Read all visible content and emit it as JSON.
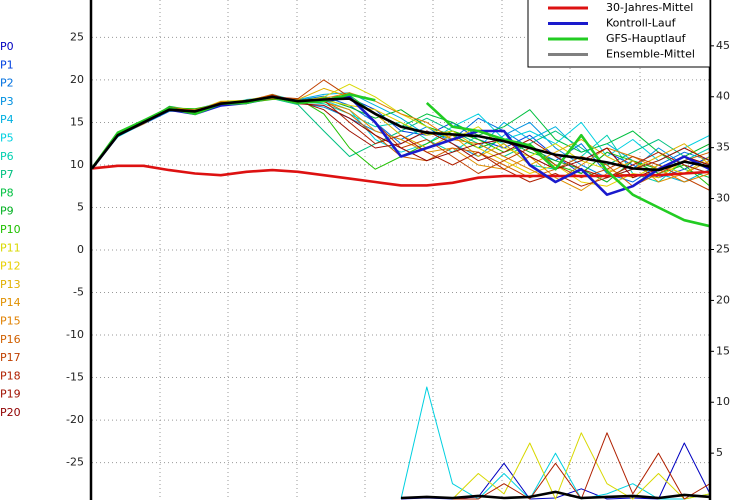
{
  "chart_data": {
    "type": "line",
    "grid": true,
    "legend": "upper right",
    "ylim": [
      -29.4,
      29.4
    ],
    "yticks": [
      -25,
      -20,
      -15,
      -10,
      -5,
      0,
      5,
      10,
      15,
      20,
      25
    ],
    "y2lim": [
      0.4,
      49.5
    ],
    "y2ticks": [
      5,
      10,
      15,
      20,
      25,
      30,
      35,
      40,
      45
    ],
    "series": [
      {
        "name": "30-Jahres-Mittel",
        "color": "#dd1111",
        "values": [
          9.6,
          9.9,
          9.9,
          9.4,
          9.0,
          8.8,
          9.2,
          9.4,
          9.2,
          8.8,
          8.4,
          8.0,
          7.6,
          7.6,
          7.9,
          8.5,
          8.7,
          8.7,
          8.7,
          8.7,
          8.7,
          8.8,
          8.8,
          9.0,
          9.2
        ]
      },
      {
        "name": "Kontroll-Lauf",
        "color": "#1a1acc",
        "values": [
          9.6,
          13.5,
          15.0,
          16.5,
          16.0,
          17.0,
          17.3,
          18.0,
          17.5,
          17.5,
          18.0,
          15.0,
          11.0,
          12.0,
          13.0,
          14.0,
          14.0,
          10.0,
          8.0,
          9.5,
          6.5,
          7.5,
          9.5,
          11.0,
          9.5
        ]
      },
      {
        "name": "GFS-Hauptlauf",
        "color": "#22cc22",
        "values": [
          9.6,
          13.8,
          15.2,
          16.7,
          16.0,
          17.2,
          17.3,
          18.0,
          17.3,
          17.5,
          18.3,
          17.6,
          null,
          17.3,
          14.5,
          14.0,
          13.0,
          12.3,
          9.5,
          13.5,
          9.3,
          6.5,
          5.0,
          3.5,
          2.8
        ]
      },
      {
        "name": "Ensemble-Mittel",
        "color": "#000000",
        "legend_color": "#808080",
        "values": [
          9.6,
          13.5,
          15.0,
          16.5,
          16.3,
          17.2,
          17.5,
          18.0,
          17.5,
          17.7,
          17.8,
          16.0,
          14.5,
          13.8,
          13.6,
          13.4,
          12.8,
          12.0,
          11.2,
          10.8,
          10.3,
          9.6,
          9.4,
          10.4,
          9.8
        ],
        "precip": [
          null,
          null,
          null,
          null,
          null,
          null,
          null,
          null,
          null,
          null,
          null,
          null,
          0.6,
          0.7,
          0.6,
          0.8,
          0.6,
          0.7,
          1.2,
          0.6,
          0.7,
          0.8,
          0.6,
          0.9,
          0.7
        ]
      }
    ],
    "members": [
      {
        "name": "P0",
        "color": "#0000c0",
        "values": [
          9.6,
          13.5,
          15.0,
          16.5,
          16.0,
          17.0,
          17.3,
          18.0,
          17.5,
          17.5,
          18.0,
          15.0,
          11.0,
          12.0,
          13.0,
          14.0,
          14.0,
          10.0,
          8.0,
          9.5,
          6.5,
          7.5,
          9.5,
          11.0,
          9.5
        ],
        "precip": [
          null,
          null,
          null,
          null,
          null,
          null,
          null,
          null,
          null,
          null,
          null,
          null,
          0.5,
          0.6,
          0.5,
          0.7,
          4.0,
          0.5,
          0.6,
          1.5,
          0.5,
          0.6,
          0.5,
          6.0,
          1.0
        ]
      },
      {
        "name": "P1",
        "color": "#0040e0",
        "values": [
          9.6,
          13.7,
          15.2,
          16.8,
          16.1,
          17.0,
          17.6,
          18.1,
          17.2,
          17.4,
          17.9,
          16.5,
          14.0,
          13.5,
          15.0,
          13.0,
          12.0,
          13.5,
          11.0,
          9.0,
          11.5,
          10.0,
          8.5,
          9.5,
          11.0
        ]
      },
      {
        "name": "P2",
        "color": "#0070e0",
        "values": [
          9.6,
          13.4,
          14.8,
          16.3,
          16.4,
          17.3,
          17.2,
          17.8,
          17.6,
          18.1,
          17.0,
          15.0,
          12.5,
          14.0,
          13.0,
          15.5,
          14.0,
          12.0,
          10.5,
          12.5,
          9.0,
          8.0,
          10.0,
          11.5,
          10.5
        ]
      },
      {
        "name": "P3",
        "color": "#0090e0",
        "values": [
          9.6,
          13.6,
          15.1,
          16.6,
          16.2,
          17.1,
          17.4,
          18.2,
          17.3,
          16.8,
          15.5,
          14.0,
          13.0,
          14.5,
          12.5,
          11.0,
          13.5,
          15.0,
          12.0,
          10.0,
          8.5,
          9.5,
          12.0,
          10.0,
          9.0
        ]
      },
      {
        "name": "P4",
        "color": "#00b0e0",
        "values": [
          9.6,
          13.5,
          15.0,
          16.7,
          16.5,
          17.4,
          17.5,
          17.9,
          17.7,
          18.3,
          18.5,
          17.0,
          15.5,
          13.5,
          14.0,
          12.0,
          15.0,
          13.0,
          14.5,
          11.5,
          12.5,
          10.5,
          9.0,
          8.0,
          9.5
        ]
      },
      {
        "name": "P5",
        "color": "#00d0e0",
        "values": [
          9.6,
          13.3,
          14.9,
          16.4,
          16.0,
          16.9,
          17.7,
          18.0,
          17.4,
          17.6,
          16.5,
          13.0,
          11.5,
          12.5,
          14.5,
          16.0,
          13.0,
          14.0,
          12.5,
          15.0,
          11.0,
          13.0,
          10.5,
          12.0,
          13.5
        ],
        "precip": [
          null,
          null,
          null,
          null,
          null,
          null,
          null,
          null,
          null,
          null,
          null,
          null,
          0.5,
          11.5,
          2.0,
          0.5,
          3.0,
          0.5,
          5.0,
          0.5,
          1.0,
          2.0,
          0.5,
          0.5,
          1.0
        ]
      },
      {
        "name": "P6",
        "color": "#00d0b0",
        "values": [
          9.6,
          13.8,
          15.3,
          16.5,
          16.3,
          17.2,
          17.3,
          18.3,
          17.5,
          17.2,
          16.0,
          14.5,
          15.0,
          13.0,
          11.5,
          13.5,
          12.5,
          10.0,
          9.5,
          11.0,
          13.5,
          9.0,
          8.0,
          10.5,
          12.0
        ]
      },
      {
        "name": "P7",
        "color": "#00c080",
        "values": [
          9.6,
          13.5,
          15.1,
          16.6,
          16.2,
          17.0,
          17.6,
          17.8,
          17.1,
          14.0,
          11.0,
          12.5,
          14.0,
          15.5,
          14.0,
          12.5,
          11.0,
          12.5,
          14.0,
          12.0,
          10.0,
          11.5,
          13.0,
          11.0,
          10.0
        ]
      },
      {
        "name": "P8",
        "color": "#00c040",
        "values": [
          9.6,
          13.6,
          15.0,
          16.9,
          16.4,
          17.3,
          17.4,
          18.1,
          17.6,
          17.9,
          18.2,
          16.0,
          14.5,
          16.0,
          15.0,
          13.5,
          14.5,
          16.5,
          13.0,
          11.5,
          12.5,
          14.0,
          11.5,
          9.5,
          8.5
        ]
      },
      {
        "name": "P9",
        "color": "#00b020",
        "values": [
          9.6,
          13.4,
          15.2,
          16.4,
          16.1,
          17.1,
          17.5,
          18.0,
          17.3,
          17.8,
          16.8,
          15.5,
          16.5,
          14.5,
          13.5,
          12.0,
          13.0,
          11.5,
          10.5,
          9.5,
          8.0,
          10.5,
          9.5,
          11.0,
          12.5
        ]
      },
      {
        "name": "P10",
        "color": "#20c000",
        "values": [
          9.6,
          13.7,
          14.9,
          16.7,
          16.6,
          17.2,
          17.3,
          17.7,
          17.8,
          16.0,
          12.0,
          9.5,
          11.0,
          12.5,
          14.0,
          13.0,
          11.5,
          12.5,
          10.0,
          9.0,
          11.5,
          10.5,
          9.0,
          10.0,
          7.5
        ]
      },
      {
        "name": "P11",
        "color": "#d8d800",
        "values": [
          9.6,
          13.5,
          15.1,
          16.5,
          16.3,
          17.5,
          17.6,
          18.2,
          17.4,
          18.0,
          19.5,
          18.0,
          16.0,
          14.5,
          13.0,
          14.5,
          12.0,
          11.0,
          12.5,
          10.5,
          9.5,
          8.5,
          10.0,
          9.0,
          11.0
        ],
        "precip": [
          null,
          null,
          null,
          null,
          null,
          null,
          null,
          null,
          null,
          null,
          null,
          null,
          null,
          null,
          0.5,
          3.0,
          1.0,
          6.0,
          0.5,
          7.0,
          2.0,
          0.5,
          3.0,
          0.5,
          1.0
        ]
      },
      {
        "name": "P12",
        "color": "#e8d000",
        "values": [
          9.6,
          13.6,
          15.0,
          16.6,
          16.0,
          17.0,
          17.5,
          17.9,
          17.2,
          17.6,
          17.0,
          16.5,
          15.0,
          13.5,
          14.0,
          12.0,
          10.5,
          9.0,
          10.0,
          8.0,
          7.5,
          9.0,
          8.5,
          10.5,
          9.5
        ]
      },
      {
        "name": "P13",
        "color": "#e0b000",
        "values": [
          9.6,
          13.4,
          15.2,
          16.8,
          16.4,
          17.3,
          17.4,
          18.0,
          17.7,
          19.0,
          18.0,
          16.0,
          13.5,
          12.0,
          13.5,
          11.0,
          12.5,
          10.0,
          11.5,
          13.0,
          11.0,
          9.5,
          11.0,
          12.5,
          10.0
        ]
      },
      {
        "name": "P14",
        "color": "#e09000",
        "values": [
          9.6,
          13.7,
          15.0,
          16.4,
          16.2,
          17.1,
          17.6,
          18.1,
          17.5,
          17.4,
          16.5,
          14.0,
          13.0,
          11.5,
          12.0,
          10.0,
          9.5,
          11.0,
          8.5,
          7.0,
          9.0,
          10.5,
          8.0,
          9.0,
          10.5
        ]
      },
      {
        "name": "P15",
        "color": "#e08000",
        "values": [
          9.6,
          13.5,
          14.8,
          16.6,
          16.5,
          17.2,
          17.3,
          17.8,
          17.6,
          17.8,
          18.5,
          17.5,
          16.0,
          15.0,
          13.0,
          12.5,
          11.0,
          9.5,
          8.0,
          10.0,
          12.0,
          11.0,
          9.5,
          8.0,
          9.0
        ]
      },
      {
        "name": "P16",
        "color": "#d06000",
        "values": [
          9.6,
          13.6,
          15.1,
          16.7,
          16.1,
          17.0,
          17.5,
          18.3,
          17.3,
          17.5,
          16.0,
          13.5,
          11.0,
          10.5,
          12.0,
          11.5,
          10.0,
          8.5,
          9.5,
          11.0,
          10.0,
          7.5,
          9.0,
          10.5,
          11.5
        ]
      },
      {
        "name": "P17",
        "color": "#c04000",
        "values": [
          9.6,
          13.5,
          15.2,
          16.5,
          16.3,
          17.4,
          17.4,
          18.0,
          17.8,
          20.0,
          18.0,
          15.0,
          12.0,
          13.0,
          11.0,
          9.0,
          10.5,
          12.0,
          10.0,
          8.5,
          9.5,
          11.0,
          10.0,
          8.5,
          7.0
        ]
      },
      {
        "name": "P18",
        "color": "#b02000",
        "values": [
          9.6,
          13.4,
          15.0,
          16.6,
          16.4,
          17.1,
          17.6,
          17.9,
          17.4,
          17.6,
          15.0,
          12.5,
          13.5,
          11.5,
          10.0,
          11.5,
          9.5,
          8.0,
          9.0,
          7.5,
          8.5,
          10.0,
          11.5,
          10.0,
          9.0
        ],
        "precip": [
          null,
          null,
          null,
          null,
          null,
          null,
          null,
          null,
          null,
          null,
          null,
          null,
          null,
          null,
          0.5,
          0.5,
          2.0,
          0.5,
          4.0,
          0.5,
          7.0,
          1.0,
          5.0,
          0.5,
          2.0
        ]
      },
      {
        "name": "P19",
        "color": "#a01000",
        "values": [
          9.6,
          13.7,
          15.1,
          16.8,
          16.2,
          17.3,
          17.3,
          18.2,
          17.5,
          16.5,
          14.0,
          12.0,
          12.5,
          14.0,
          12.5,
          10.5,
          11.5,
          13.0,
          11.0,
          9.5,
          8.5,
          9.5,
          10.5,
          12.0,
          10.5
        ]
      },
      {
        "name": "P20",
        "color": "#900000",
        "values": [
          9.6,
          13.5,
          14.9,
          16.5,
          16.0,
          17.0,
          17.5,
          18.0,
          17.2,
          17.0,
          15.5,
          13.5,
          12.0,
          10.5,
          11.5,
          12.5,
          13.0,
          11.0,
          9.5,
          10.5,
          12.0,
          8.5,
          9.5,
          11.0,
          10.0
        ]
      }
    ]
  }
}
